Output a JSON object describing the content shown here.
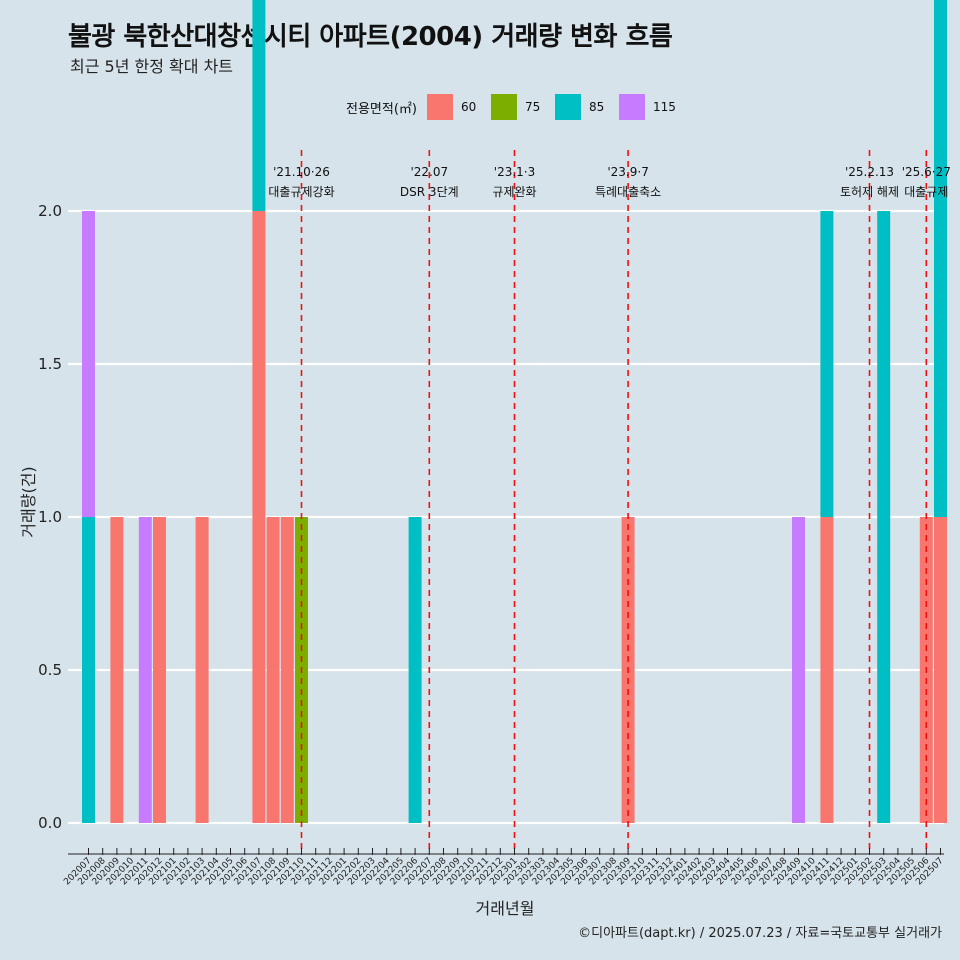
{
  "header": {
    "title": "불광 북한산대창센시티 아파트(2004) 거래량 변화 흐름",
    "subtitle": "최근 5년 한정 확대 차트"
  },
  "legend": {
    "title": "전용면적(㎡)",
    "items": [
      {
        "label": "60",
        "color": "#f8766d"
      },
      {
        "label": "75",
        "color": "#7cae00"
      },
      {
        "label": "85",
        "color": "#00bfc4"
      },
      {
        "label": "115",
        "color": "#c77cff"
      }
    ]
  },
  "caption": "©디아파트(dapt.kr) / 2025.07.23 / 자료=국토교통부 실거래가",
  "chart_data": {
    "type": "bar",
    "xlabel": "거래년월",
    "ylabel": "거래량(건)",
    "ylim": [
      0,
      2.0
    ],
    "yticks": [
      "0.0",
      "0.5",
      "1.0",
      "1.5",
      "2.0"
    ],
    "grid": "horizontal",
    "legend_position": "top",
    "categories": [
      "202007",
      "202008",
      "202009",
      "202010",
      "202011",
      "202012",
      "202101",
      "202102",
      "202103",
      "202104",
      "202105",
      "202106",
      "202107",
      "202108",
      "202109",
      "202110",
      "202111",
      "202112",
      "202201",
      "202202",
      "202203",
      "202204",
      "202205",
      "202206",
      "202207",
      "202208",
      "202209",
      "202210",
      "202211",
      "202212",
      "202301",
      "202302",
      "202303",
      "202304",
      "202305",
      "202306",
      "202307",
      "202308",
      "202309",
      "202310",
      "202311",
      "202312",
      "202401",
      "202402",
      "202403",
      "202404",
      "202405",
      "202406",
      "202407",
      "202408",
      "202409",
      "202410",
      "202411",
      "202412",
      "202501",
      "202502",
      "202503",
      "202504",
      "202505",
      "202506",
      "202507"
    ],
    "series": [
      {
        "name": "60",
        "color": "#f8766d",
        "values": [
          0,
          0,
          1,
          0,
          0,
          1,
          0,
          0,
          1,
          0,
          0,
          0,
          2,
          1,
          1,
          0,
          0,
          0,
          0,
          0,
          0,
          0,
          0,
          0,
          0,
          0,
          0,
          0,
          0,
          0,
          0,
          0,
          0,
          0,
          0,
          0,
          0,
          0,
          1,
          0,
          0,
          0,
          0,
          0,
          0,
          0,
          0,
          0,
          0,
          0,
          0,
          0,
          1,
          0,
          0,
          0,
          0,
          0,
          0,
          1,
          1
        ]
      },
      {
        "name": "75",
        "color": "#7cae00",
        "values": [
          0,
          0,
          0,
          0,
          0,
          0,
          0,
          0,
          0,
          0,
          0,
          0,
          0,
          0,
          0,
          1,
          0,
          0,
          0,
          0,
          0,
          0,
          0,
          0,
          0,
          0,
          0,
          0,
          0,
          0,
          0,
          0,
          0,
          0,
          0,
          0,
          0,
          0,
          0,
          0,
          0,
          0,
          0,
          0,
          0,
          0,
          0,
          0,
          0,
          0,
          0,
          0,
          0,
          0,
          0,
          0,
          0,
          0,
          0,
          0,
          0
        ]
      },
      {
        "name": "85",
        "color": "#00bfc4",
        "values": [
          1,
          0,
          0,
          0,
          0,
          0,
          0,
          0,
          0,
          0,
          0,
          0,
          1,
          0,
          0,
          0,
          0,
          0,
          0,
          0,
          0,
          0,
          0,
          1,
          0,
          0,
          0,
          0,
          0,
          0,
          0,
          0,
          0,
          0,
          0,
          0,
          0,
          0,
          0,
          0,
          0,
          0,
          0,
          0,
          0,
          0,
          0,
          0,
          0,
          0,
          0,
          0,
          1,
          0,
          0,
          0,
          2,
          0,
          0,
          0,
          2
        ]
      },
      {
        "name": "115",
        "color": "#c77cff",
        "values": [
          1,
          0,
          0,
          0,
          1,
          0,
          0,
          0,
          0,
          0,
          0,
          0,
          0,
          0,
          0,
          0,
          0,
          0,
          0,
          0,
          0,
          0,
          0,
          0,
          0,
          0,
          0,
          0,
          0,
          0,
          0,
          0,
          0,
          0,
          0,
          0,
          0,
          0,
          0,
          0,
          0,
          0,
          0,
          0,
          0,
          0,
          0,
          0,
          0,
          0,
          1,
          0,
          0,
          0,
          0,
          0,
          0,
          0,
          0,
          0,
          0
        ]
      }
    ],
    "events": [
      {
        "x": "202110",
        "date": "'21.10·26",
        "label": "대출규제강화"
      },
      {
        "x": "202207",
        "date": "'22.07",
        "label": "DSR 3단계"
      },
      {
        "x": "202301",
        "date": "'23.1·3",
        "label": "규제완화"
      },
      {
        "x": "202309",
        "date": "'23.9·7",
        "label": "특례대출축소"
      },
      {
        "x": "202502",
        "date": "'25.2.13",
        "label": "토허제 해제"
      },
      {
        "x": "202506",
        "date": "'25.6·27",
        "label": "대출규제"
      }
    ]
  }
}
